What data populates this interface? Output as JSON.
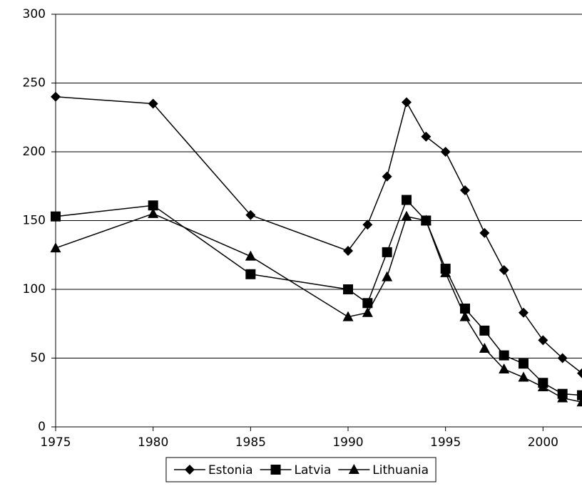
{
  "chart_data": {
    "type": "line",
    "x": [
      1975,
      1980,
      1985,
      1990,
      1991,
      1992,
      1993,
      1994,
      1995,
      1996,
      1997,
      1998,
      1999,
      2000,
      2001,
      2002
    ],
    "series": [
      {
        "name": "Estonia",
        "color": "#000000",
        "marker": "diamond",
        "values": [
          240,
          235,
          154,
          128,
          147,
          182,
          236,
          211,
          200,
          172,
          141,
          114,
          83,
          63,
          50,
          39
        ]
      },
      {
        "name": "Latvia",
        "color": "#000000",
        "marker": "square",
        "values": [
          153,
          161,
          111,
          100,
          90,
          127,
          165,
          150,
          115,
          86,
          70,
          52,
          46,
          32,
          24,
          23
        ]
      },
      {
        "name": "Lithuania",
        "color": "#000000",
        "marker": "triangle",
        "values": [
          130,
          155,
          124,
          80,
          83,
          109,
          153,
          150,
          112,
          80,
          57,
          42,
          36,
          29,
          21,
          18
        ]
      }
    ],
    "xlim": [
      1975,
      2002
    ],
    "xticks": [
      1975,
      1980,
      1985,
      1990,
      1995,
      2000
    ],
    "ylim": [
      0,
      300
    ],
    "yticks": [
      0,
      50,
      100,
      150,
      200,
      250,
      300
    ],
    "grid": true,
    "legend": "bottom"
  }
}
